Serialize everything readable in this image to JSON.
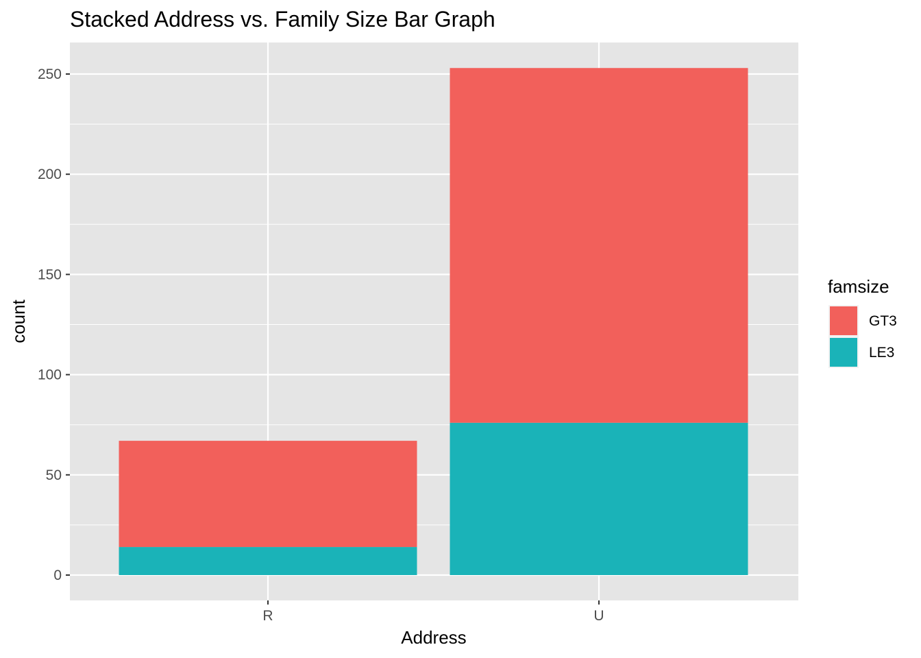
{
  "chart_data": {
    "type": "bar",
    "stacked": true,
    "title": "Stacked Address vs. Family Size Bar Graph",
    "xlabel": "Address",
    "ylabel": "count",
    "categories": [
      "R",
      "U"
    ],
    "series": [
      {
        "name": "GT3",
        "color": "#F2605B",
        "values": [
          53,
          177
        ]
      },
      {
        "name": "LE3",
        "color": "#1AB3B8",
        "values": [
          14,
          76
        ]
      }
    ],
    "stack_order_bottom_to_top": [
      "LE3",
      "GT3"
    ],
    "ylim": [
      0,
      262
    ],
    "yticks": [
      0,
      50,
      100,
      150,
      200,
      250
    ],
    "ytick_labels": [
      "0",
      "50",
      "100",
      "150",
      "200",
      "250"
    ],
    "legend": {
      "title": "famsize",
      "position": "right"
    },
    "grid": true,
    "panel_background": "#E5E5E5",
    "grid_color": "#FFFFFF"
  }
}
